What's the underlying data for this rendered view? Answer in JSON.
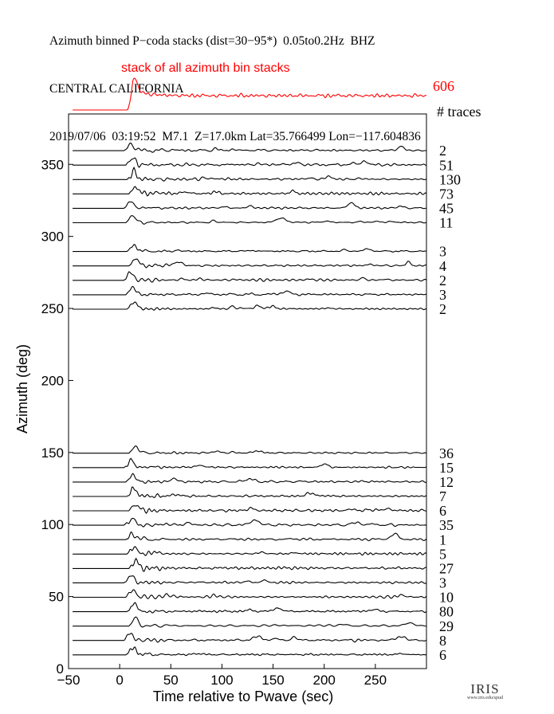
{
  "header": {
    "line1": "Azimuth binned P−coda stacks (dist=30−95*)  0.05to0.2Hz  BHZ",
    "line2": "CENTRAL CALIFORNIA",
    "line3": "2019/07/06  03:19:52  M7.1  Z=17.0km Lat=35.766499 Lon=−117.604836"
  },
  "colors": {
    "stack": "#ff0000",
    "traces": "#000000"
  },
  "logo": {
    "text": "IRIS",
    "subtext": "www.iris.edu/spud"
  },
  "chart_data": {
    "type": "line",
    "xlabel": "Time relative to Pwave (sec)",
    "ylabel": "Azimuth (deg)",
    "xlim": [
      -50,
      300
    ],
    "ylim": [
      0,
      385
    ],
    "xticks": [
      -50,
      0,
      50,
      100,
      150,
      200,
      250
    ],
    "yticks": [
      0,
      50,
      100,
      150,
      200,
      250,
      300,
      350
    ],
    "traces_header": "# traces",
    "stack": {
      "label": "stack of all azimuth bin stacks",
      "count": "606",
      "onset": 8,
      "peak_time": 15
    },
    "series": [
      {
        "azimuth": 360,
        "count": "2"
      },
      {
        "azimuth": 350,
        "count": "51"
      },
      {
        "azimuth": 340,
        "count": "130"
      },
      {
        "azimuth": 330,
        "count": "73"
      },
      {
        "azimuth": 320,
        "count": "45"
      },
      {
        "azimuth": 310,
        "count": "11"
      },
      {
        "azimuth": 290,
        "count": "3"
      },
      {
        "azimuth": 280,
        "count": "4"
      },
      {
        "azimuth": 270,
        "count": "2"
      },
      {
        "azimuth": 260,
        "count": "3"
      },
      {
        "azimuth": 250,
        "count": "2"
      },
      {
        "azimuth": 150,
        "count": "36"
      },
      {
        "azimuth": 140,
        "count": "15"
      },
      {
        "azimuth": 130,
        "count": "12"
      },
      {
        "azimuth": 120,
        "count": "7"
      },
      {
        "azimuth": 110,
        "count": "6"
      },
      {
        "azimuth": 100,
        "count": "35"
      },
      {
        "azimuth": 90,
        "count": "1"
      },
      {
        "azimuth": 80,
        "count": "5"
      },
      {
        "azimuth": 70,
        "count": "27"
      },
      {
        "azimuth": 60,
        "count": "3"
      },
      {
        "azimuth": 50,
        "count": "10"
      },
      {
        "azimuth": 40,
        "count": "80"
      },
      {
        "azimuth": 30,
        "count": "29"
      },
      {
        "azimuth": 20,
        "count": "8"
      },
      {
        "azimuth": 10,
        "count": "6"
      }
    ]
  }
}
